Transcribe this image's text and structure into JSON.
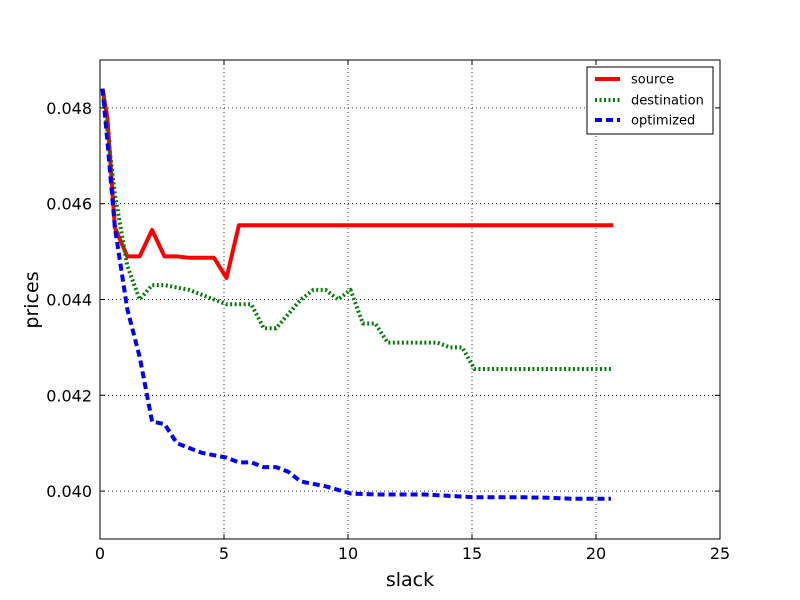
{
  "chart_data": {
    "type": "line",
    "title": "",
    "xlabel": "slack",
    "ylabel": "prices",
    "xlim": [
      0,
      25
    ],
    "ylim": [
      0.039,
      0.049
    ],
    "x_ticks": [
      0,
      5,
      10,
      15,
      20,
      25
    ],
    "y_ticks": [
      0.04,
      0.042,
      0.044,
      0.046,
      0.048
    ],
    "x_tick_labels": [
      "0",
      "5",
      "10",
      "15",
      "20",
      "25"
    ],
    "y_tick_labels": [
      "0.040",
      "0.042",
      "0.044",
      "0.046",
      "0.048"
    ],
    "grid": true,
    "legend_position": "top-right",
    "series": [
      {
        "name": "source",
        "color": "#ff0000",
        "style": "solid",
        "points": [
          [
            0.1,
            0.0484
          ],
          [
            0.3,
            0.0478
          ],
          [
            0.6,
            0.0455
          ],
          [
            1.1,
            0.0449
          ],
          [
            1.6,
            0.0449
          ],
          [
            2.1,
            0.04545
          ],
          [
            2.6,
            0.0449
          ],
          [
            3.1,
            0.0449
          ],
          [
            3.6,
            0.04487
          ],
          [
            4.1,
            0.04487
          ],
          [
            4.6,
            0.04487
          ],
          [
            5.1,
            0.04445
          ],
          [
            5.6,
            0.04555
          ],
          [
            6.1,
            0.04555
          ],
          [
            8,
            0.04555
          ],
          [
            10,
            0.04555
          ],
          [
            12,
            0.04555
          ],
          [
            14,
            0.04555
          ],
          [
            16,
            0.04555
          ],
          [
            18,
            0.04555
          ],
          [
            20.7,
            0.04555
          ]
        ]
      },
      {
        "name": "destination",
        "color": "#008000",
        "style": "dotted",
        "points": [
          [
            0.1,
            0.0484
          ],
          [
            0.6,
            0.0462
          ],
          [
            1.1,
            0.0447
          ],
          [
            1.6,
            0.044
          ],
          [
            2.1,
            0.0443
          ],
          [
            2.6,
            0.0443
          ],
          [
            3.1,
            0.04425
          ],
          [
            3.6,
            0.0442
          ],
          [
            4.1,
            0.0441
          ],
          [
            4.6,
            0.044
          ],
          [
            5.1,
            0.0439
          ],
          [
            6.1,
            0.0439
          ],
          [
            6.6,
            0.0434
          ],
          [
            7.1,
            0.0434
          ],
          [
            7.6,
            0.0437
          ],
          [
            8.1,
            0.044
          ],
          [
            8.6,
            0.0442
          ],
          [
            9.1,
            0.0442
          ],
          [
            9.6,
            0.044
          ],
          [
            10.1,
            0.0442
          ],
          [
            10.6,
            0.0435
          ],
          [
            11.1,
            0.0435
          ],
          [
            11.6,
            0.0431
          ],
          [
            12.1,
            0.0431
          ],
          [
            13.1,
            0.0431
          ],
          [
            13.6,
            0.0431
          ],
          [
            14.1,
            0.043
          ],
          [
            14.6,
            0.043
          ],
          [
            15.1,
            0.04255
          ],
          [
            16.1,
            0.04255
          ],
          [
            18.1,
            0.04255
          ],
          [
            20.6,
            0.04255
          ]
        ]
      },
      {
        "name": "optimized",
        "color": "#0000ff",
        "style": "dashed",
        "points": [
          [
            0.1,
            0.0484
          ],
          [
            0.3,
            0.0473
          ],
          [
            0.6,
            0.0455
          ],
          [
            1.1,
            0.0438
          ],
          [
            1.6,
            0.0428
          ],
          [
            2.1,
            0.04145
          ],
          [
            2.6,
            0.0414
          ],
          [
            3.1,
            0.041
          ],
          [
            3.6,
            0.0409
          ],
          [
            4.1,
            0.0408
          ],
          [
            4.6,
            0.04075
          ],
          [
            5.1,
            0.0407
          ],
          [
            5.6,
            0.0406
          ],
          [
            6.1,
            0.0406
          ],
          [
            6.6,
            0.0405
          ],
          [
            7.1,
            0.0405
          ],
          [
            7.6,
            0.0404
          ],
          [
            8.1,
            0.0402
          ],
          [
            9.1,
            0.0401
          ],
          [
            10.1,
            0.03995
          ],
          [
            11.1,
            0.03993
          ],
          [
            13.1,
            0.03993
          ],
          [
            14.1,
            0.0399
          ],
          [
            15.1,
            0.03987
          ],
          [
            17.1,
            0.03987
          ],
          [
            18.1,
            0.03986
          ],
          [
            19.1,
            0.03984
          ],
          [
            20.6,
            0.03984
          ]
        ]
      }
    ]
  }
}
